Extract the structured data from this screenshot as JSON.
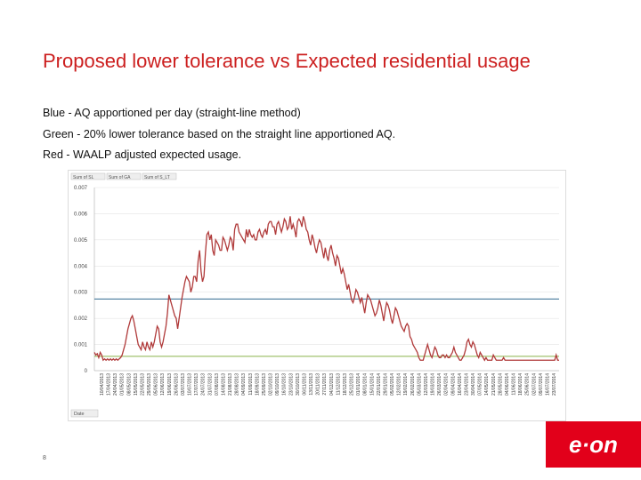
{
  "slide": {
    "title": "Proposed lower tolerance vs Expected residential usage",
    "lines": [
      "Blue - AQ apportioned per day (straight-line method)",
      "Green - 20% lower tolerance based on the straight line apportioned AQ.",
      "Red - WAALP adjusted expected usage."
    ],
    "page_number": "8",
    "logo_text": "e·on"
  },
  "colors": {
    "title": "#cc1f1f",
    "blue": "#2f6a8f",
    "green": "#8ab34a",
    "red": "#b03a3a",
    "logo_bg": "#e2001a"
  },
  "chart_data": {
    "type": "line",
    "pivot_buttons": [
      "Sum of SL",
      "Sum of GA",
      "Sum of S_LT"
    ],
    "filter_button": "Date",
    "ylim": [
      0,
      0.007
    ],
    "yticks": [
      "0",
      "0.001",
      "0.002",
      "0.003",
      "0.004",
      "0.005",
      "0.006",
      "0.007"
    ],
    "xticks": [
      "10/04/2013",
      "17/04/2013",
      "24/04/2013",
      "01/05/2013",
      "08/05/2013",
      "15/05/2013",
      "22/05/2013",
      "29/05/2013",
      "05/06/2013",
      "12/06/2013",
      "19/06/2013",
      "26/06/2013",
      "03/07/2013",
      "10/07/2013",
      "17/07/2013",
      "24/07/2013",
      "31/07/2013",
      "07/08/2013",
      "14/08/2013",
      "21/08/2013",
      "28/08/2013",
      "04/09/2013",
      "11/09/2013",
      "18/09/2013",
      "25/09/2013",
      "02/10/2013",
      "09/10/2013",
      "16/10/2013",
      "23/10/2013",
      "30/10/2013",
      "06/11/2013",
      "13/11/2013",
      "20/11/2013",
      "27/11/2013",
      "04/12/2013",
      "11/12/2013",
      "18/12/2013",
      "25/12/2013",
      "01/01/2014",
      "08/01/2014",
      "15/01/2014",
      "22/01/2014",
      "29/01/2014",
      "05/02/2014",
      "12/02/2014",
      "19/02/2014",
      "26/02/2014",
      "05/03/2014",
      "12/03/2014",
      "19/03/2014",
      "26/03/2014",
      "02/04/2014",
      "09/04/2014",
      "16/04/2014",
      "23/04/2014",
      "30/04/2014",
      "07/05/2014",
      "14/05/2014",
      "21/05/2014",
      "28/05/2014",
      "04/06/2014",
      "11/06/2014",
      "18/06/2014",
      "25/06/2014",
      "02/07/2014",
      "09/07/2014",
      "16/07/2014",
      "23/07/2014"
    ],
    "series": [
      {
        "name": "AQ apportioned per day",
        "color": "#2f6a8f",
        "values": [
          0.00274,
          0.00274
        ]
      },
      {
        "name": "20% lower tolerance",
        "color": "#8ab34a",
        "values": [
          0.000548,
          0.000548
        ]
      },
      {
        "name": "WAALP adjusted expected usage",
        "color": "#b03a3a",
        "values": [
          0.0007,
          0.0006,
          0.00065,
          0.0005,
          0.0007,
          0.0006,
          0.0004,
          0.00045,
          0.0004,
          0.00045,
          0.0004,
          0.00045,
          0.0004,
          0.00045,
          0.0004,
          0.00045,
          0.0004,
          0.00045,
          0.0005,
          0.0006,
          0.0008,
          0.001,
          0.0013,
          0.0016,
          0.0018,
          0.002,
          0.0021,
          0.0019,
          0.0016,
          0.0013,
          0.001,
          0.0009,
          0.0008,
          0.0011,
          0.0009,
          0.0008,
          0.0011,
          0.0009,
          0.0008,
          0.0011,
          0.0009,
          0.0011,
          0.0014,
          0.0017,
          0.0016,
          0.0011,
          0.0009,
          0.0011,
          0.0014,
          0.0017,
          0.0022,
          0.0029,
          0.0027,
          0.0025,
          0.0023,
          0.0021,
          0.002,
          0.0016,
          0.002,
          0.0024,
          0.0028,
          0.0031,
          0.0034,
          0.0036,
          0.0035,
          0.0034,
          0.003,
          0.0032,
          0.0036,
          0.0036,
          0.0034,
          0.0042,
          0.0046,
          0.0038,
          0.0034,
          0.0036,
          0.0045,
          0.0052,
          0.0053,
          0.005,
          0.0052,
          0.0046,
          0.0044,
          0.005,
          0.0049,
          0.0048,
          0.0046,
          0.0046,
          0.0051,
          0.005,
          0.0048,
          0.0046,
          0.0048,
          0.0051,
          0.005,
          0.0046,
          0.0054,
          0.0056,
          0.0056,
          0.0053,
          0.0052,
          0.0051,
          0.005,
          0.0049,
          0.0054,
          0.0051,
          0.0054,
          0.0052,
          0.0051,
          0.0052,
          0.005,
          0.005,
          0.0053,
          0.0054,
          0.0052,
          0.0051,
          0.0053,
          0.0054,
          0.0052,
          0.0056,
          0.0057,
          0.0057,
          0.0055,
          0.0055,
          0.0052,
          0.0056,
          0.0057,
          0.0055,
          0.0053,
          0.0055,
          0.0058,
          0.0057,
          0.0054,
          0.0055,
          0.0059,
          0.0054,
          0.0056,
          0.0054,
          0.0051,
          0.0057,
          0.0058,
          0.0057,
          0.0055,
          0.0059,
          0.0057,
          0.0054,
          0.0053,
          0.005,
          0.0048,
          0.0052,
          0.005,
          0.0047,
          0.0045,
          0.0048,
          0.005,
          0.0049,
          0.0046,
          0.0043,
          0.0047,
          0.0044,
          0.0042,
          0.0046,
          0.0048,
          0.0045,
          0.0043,
          0.004,
          0.0044,
          0.0043,
          0.004,
          0.0037,
          0.0039,
          0.0037,
          0.0034,
          0.0031,
          0.0033,
          0.003,
          0.0027,
          0.0026,
          0.0028,
          0.0031,
          0.003,
          0.0028,
          0.0026,
          0.0028,
          0.0025,
          0.0022,
          0.0026,
          0.0029,
          0.0028,
          0.0027,
          0.0025,
          0.0023,
          0.0021,
          0.0022,
          0.0024,
          0.0027,
          0.0025,
          0.0022,
          0.0019,
          0.0023,
          0.0026,
          0.0025,
          0.0023,
          0.002,
          0.0018,
          0.0021,
          0.0024,
          0.0023,
          0.0021,
          0.0019,
          0.0017,
          0.0016,
          0.0015,
          0.0017,
          0.0018,
          0.0017,
          0.0013,
          0.0012,
          0.001,
          0.0009,
          0.0008,
          0.0007,
          0.0005,
          0.0004,
          0.0004,
          0.0004,
          0.0006,
          0.0008,
          0.001,
          0.0008,
          0.0006,
          0.0005,
          0.0007,
          0.0009,
          0.0008,
          0.0006,
          0.0005,
          0.0005,
          0.0006,
          0.0006,
          0.0005,
          0.0006,
          0.0005,
          0.0005,
          0.0006,
          0.0007,
          0.0009,
          0.0007,
          0.0006,
          0.0005,
          0.0004,
          0.0004,
          0.0005,
          0.0006,
          0.0008,
          0.0011,
          0.0012,
          0.001,
          0.0009,
          0.0011,
          0.001,
          0.0008,
          0.0006,
          0.0005,
          0.0007,
          0.0006,
          0.0005,
          0.0004,
          0.0005,
          0.0004,
          0.0004,
          0.0004,
          0.0004,
          0.0006,
          0.0005,
          0.0004,
          0.0004,
          0.0004,
          0.0004,
          0.0004,
          0.0005,
          0.0004,
          0.0004,
          0.0004,
          0.0004,
          0.0004,
          0.0004,
          0.0004,
          0.0004,
          0.0004,
          0.0004,
          0.0004,
          0.0004,
          0.0004,
          0.0004,
          0.0004,
          0.0004,
          0.0004,
          0.0004,
          0.0004,
          0.0004,
          0.0004,
          0.0004,
          0.0004,
          0.0004,
          0.0004,
          0.0004,
          0.0004,
          0.0004,
          0.0004,
          0.0004,
          0.0004,
          0.0004,
          0.0004,
          0.0004,
          0.0004,
          0.0006,
          0.0004,
          0.0004
        ]
      }
    ]
  }
}
